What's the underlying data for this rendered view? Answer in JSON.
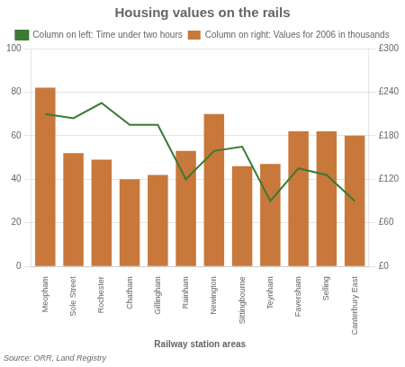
{
  "chart_data": {
    "type": "bar",
    "title": "Housing values on the rails",
    "x_label": "Railway station areas",
    "annotations": [
      "Source: ORR, Land Registry"
    ],
    "categories": [
      "Meopham",
      "Sole Street",
      "Rochester",
      "Chatham",
      "Gillingham",
      "Rainham",
      "Newington",
      "Sittingbourne",
      "Teynham",
      "Faversham",
      "Selling",
      "Canterbury East"
    ],
    "series": [
      {
        "name": "Column on left: Time under two hours",
        "type": "line",
        "color": "#3A7A35",
        "values": [
          70,
          68,
          75,
          65,
          65,
          40,
          53,
          55,
          30,
          45,
          42,
          30
        ]
      },
      {
        "name": "Column on right: Values for 2006 in thousands",
        "type": "bar",
        "color": "#C8783A",
        "values": [
          82,
          52,
          49,
          40,
          42,
          53,
          70,
          46,
          47,
          62,
          62,
          60
        ]
      }
    ],
    "ylim": [
      0,
      100
    ],
    "yticks": [
      0,
      20,
      40,
      60,
      80,
      100
    ],
    "y2lim": [
      0,
      300
    ],
    "y2ticks": [
      {
        "value": 0,
        "label": "£0"
      },
      {
        "value": 60,
        "label": "£60"
      },
      {
        "value": 120,
        "label": "£120"
      },
      {
        "value": 180,
        "label": "£180"
      },
      {
        "value": 240,
        "label": "£240"
      },
      {
        "value": 300,
        "label": "£300"
      }
    ],
    "grid": true,
    "legend": "top"
  }
}
